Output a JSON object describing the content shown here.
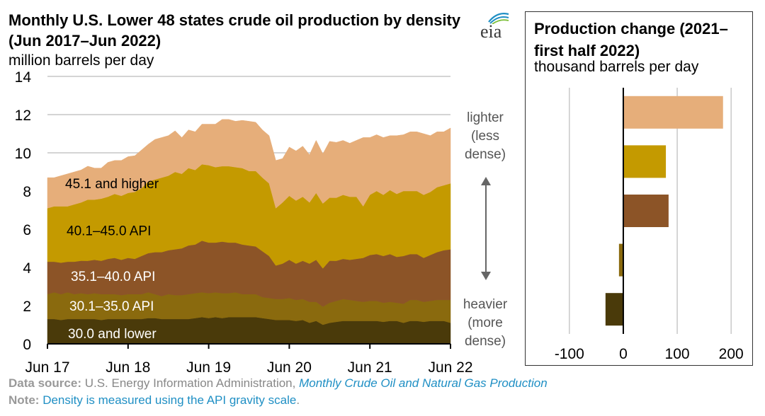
{
  "title": "Monthly U.S. Lower 48 states crude oil production by density (Jun 2017–Jun 2022)",
  "units": "million barrels per day",
  "logo_text": "eia",
  "side_labels": {
    "lighter": [
      "lighter",
      "(less",
      "dense)"
    ],
    "heavier": [
      "heavier",
      "(more",
      "dense)"
    ]
  },
  "footer": {
    "source_label": "Data source:",
    "source_text": "U.S. Energy Information Administration,",
    "source_link": "Monthly Crude Oil and Natural Gas Production",
    "note_label": "Note:",
    "note_text": "Density is measured using the API gravity scale",
    "note_end": "."
  },
  "colors": {
    "s1": "#4a3a0a",
    "s2": "#8a6a0e",
    "s3": "#8c5427",
    "s4": "#c49a00",
    "s5": "#e6ae7a",
    "grid": "#bbbbbb",
    "arrow": "#666666"
  },
  "chart_data": [
    {
      "type": "area",
      "stacked": true,
      "title": "Monthly U.S. Lower 48 states crude oil production by density (Jun 2017–Jun 2022)",
      "ylabel": "million barrels per day",
      "ylim": [
        0,
        14
      ],
      "yticks": [
        0,
        2,
        4,
        6,
        8,
        10,
        12,
        14
      ],
      "xtick_labels": [
        "Jun 17",
        "Jun 18",
        "Jun 19",
        "Jun 20",
        "Jun 21",
        "Jun 22"
      ],
      "grid": true,
      "x": [
        "Jun 17",
        "Jul 17",
        "Aug 17",
        "Sep 17",
        "Oct 17",
        "Nov 17",
        "Dec 17",
        "Jan 18",
        "Feb 18",
        "Mar 18",
        "Apr 18",
        "May 18",
        "Jun 18",
        "Jul 18",
        "Aug 18",
        "Sep 18",
        "Oct 18",
        "Nov 18",
        "Dec 18",
        "Jan 19",
        "Feb 19",
        "Mar 19",
        "Apr 19",
        "May 19",
        "Jun 19",
        "Jul 19",
        "Aug 19",
        "Sep 19",
        "Oct 19",
        "Nov 19",
        "Dec 19",
        "Jan 20",
        "Feb 20",
        "Mar 20",
        "Apr 20",
        "May 20",
        "Jun 20",
        "Jul 20",
        "Aug 20",
        "Sep 20",
        "Oct 20",
        "Nov 20",
        "Dec 20",
        "Jan 21",
        "Feb 21",
        "Mar 21",
        "Apr 21",
        "May 21",
        "Jun 21",
        "Jul 21",
        "Aug 21",
        "Sep 21",
        "Oct 21",
        "Nov 21",
        "Dec 21",
        "Jan 22",
        "Feb 22",
        "Mar 22",
        "Apr 22",
        "May 22",
        "Jun 22"
      ],
      "series": [
        {
          "name": "30.0 and lower",
          "values": [
            1.3,
            1.3,
            1.25,
            1.3,
            1.3,
            1.3,
            1.3,
            1.3,
            1.25,
            1.3,
            1.3,
            1.3,
            1.3,
            1.3,
            1.3,
            1.35,
            1.35,
            1.3,
            1.3,
            1.3,
            1.3,
            1.3,
            1.35,
            1.4,
            1.35,
            1.4,
            1.35,
            1.4,
            1.4,
            1.4,
            1.4,
            1.4,
            1.35,
            1.3,
            1.25,
            1.25,
            1.25,
            1.2,
            1.25,
            1.1,
            1.2,
            1.0,
            1.1,
            1.15,
            1.2,
            1.2,
            1.2,
            1.2,
            1.2,
            1.2,
            1.15,
            1.2,
            1.2,
            1.1,
            1.2,
            1.2,
            1.15,
            1.2,
            1.2,
            1.2,
            1.1
          ]
        },
        {
          "name": "30.1–35.0 API",
          "values": [
            1.3,
            1.4,
            1.35,
            1.4,
            1.3,
            1.35,
            1.3,
            1.35,
            1.35,
            1.3,
            1.3,
            1.25,
            1.3,
            1.3,
            1.3,
            1.35,
            1.25,
            1.2,
            1.3,
            1.25,
            1.25,
            1.3,
            1.3,
            1.3,
            1.3,
            1.3,
            1.3,
            1.25,
            1.3,
            1.2,
            1.2,
            1.2,
            1.1,
            1.1,
            1.1,
            1.1,
            1.15,
            1.1,
            1.1,
            1.1,
            1.0,
            0.95,
            1.05,
            1.1,
            1.15,
            1.1,
            1.05,
            1.0,
            1.05,
            1.05,
            1.0,
            1.0,
            0.95,
            1.0,
            1.1,
            1.1,
            1.05,
            1.05,
            1.1,
            1.1,
            1.2
          ]
        },
        {
          "name": "35.1–40.0 API",
          "values": [
            1.7,
            1.6,
            1.65,
            1.6,
            1.7,
            1.7,
            1.75,
            1.75,
            1.75,
            1.85,
            1.9,
            1.85,
            1.9,
            1.85,
            2.0,
            2.05,
            2.2,
            2.3,
            2.3,
            2.4,
            2.45,
            2.55,
            2.55,
            2.7,
            2.65,
            2.6,
            2.7,
            2.65,
            2.6,
            2.6,
            2.55,
            2.5,
            2.4,
            2.2,
            1.75,
            1.85,
            2.0,
            1.9,
            2.0,
            2.0,
            2.2,
            2.0,
            2.2,
            2.1,
            2.1,
            2.1,
            2.2,
            2.3,
            2.4,
            2.45,
            2.45,
            2.5,
            2.4,
            2.5,
            2.4,
            2.4,
            2.3,
            2.4,
            2.5,
            2.6,
            2.65
          ]
        },
        {
          "name": "40.1–45.0 API",
          "values": [
            2.8,
            2.9,
            2.95,
            2.9,
            3.0,
            3.05,
            3.2,
            3.15,
            3.25,
            3.25,
            3.35,
            3.35,
            3.4,
            3.5,
            3.55,
            3.75,
            3.8,
            3.9,
            3.9,
            4.05,
            3.9,
            4.05,
            3.9,
            4.0,
            4.05,
            3.95,
            3.95,
            4.0,
            3.95,
            4.0,
            3.9,
            3.95,
            3.85,
            3.8,
            3.0,
            3.2,
            3.35,
            3.3,
            3.35,
            3.2,
            3.5,
            3.4,
            3.3,
            3.3,
            3.35,
            3.3,
            3.25,
            2.7,
            3.15,
            3.3,
            3.2,
            3.35,
            3.3,
            3.4,
            3.3,
            3.3,
            3.3,
            3.3,
            3.4,
            3.4,
            3.45
          ]
        },
        {
          "name": "45.1 and higher",
          "values": [
            1.6,
            1.5,
            1.6,
            1.7,
            1.7,
            1.7,
            1.75,
            1.65,
            1.6,
            1.8,
            1.75,
            1.85,
            1.9,
            1.9,
            2.0,
            1.95,
            2.1,
            2.1,
            2.1,
            2.15,
            1.9,
            2.0,
            2.0,
            2.1,
            2.15,
            2.25,
            2.45,
            2.45,
            2.4,
            2.5,
            2.6,
            2.55,
            2.5,
            2.5,
            2.5,
            2.3,
            2.55,
            2.6,
            2.65,
            2.5,
            2.75,
            2.6,
            2.95,
            2.9,
            2.85,
            2.8,
            2.95,
            3.6,
            3.0,
            2.95,
            3.0,
            2.85,
            3.05,
            2.95,
            3.1,
            3.1,
            3.2,
            2.95,
            2.9,
            2.8,
            2.9
          ]
        }
      ]
    },
    {
      "type": "bar",
      "orientation": "horizontal",
      "title": "Production change (2021–first half 2022)",
      "xlabel": "thousand barrels per day",
      "xlim": [
        -130,
        230
      ],
      "xticks": [
        -100,
        0,
        100,
        200
      ],
      "xtick_labels": [
        "-100",
        "0",
        "100",
        "200"
      ],
      "grid": true,
      "categories": [
        "45.1 and higher",
        "40.1–45.0 API",
        "35.1–40.0 API",
        "30.1–35.0 API",
        "30.0 and lower"
      ],
      "values": [
        185,
        79,
        84,
        -8,
        -33
      ]
    }
  ]
}
